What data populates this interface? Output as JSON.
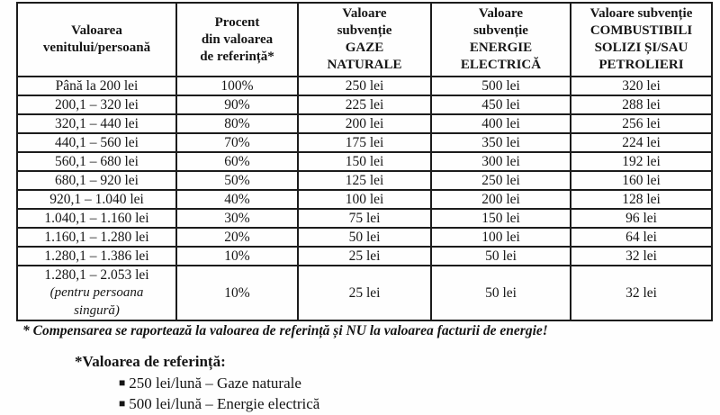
{
  "table": {
    "headers": [
      "Valoarea\nvenitului/persoană",
      "Procent\ndin valoarea\nde referință*",
      "Valoare\nsubvenție\nGAZE\nNATURALE",
      "Valoare\nsubvenție\nENERGIE\nELECTRICĂ",
      "Valoare subvenție\nCOMBUSTIBILI\nSOLIZI ȘI/SAU\nPETROLIERI"
    ],
    "rows": [
      [
        "Până la 200 lei",
        "100%",
        "250 lei",
        "500 lei",
        "320 lei"
      ],
      [
        "200,1 – 320 lei",
        "90%",
        "225 lei",
        "450 lei",
        "288 lei"
      ],
      [
        "320,1 – 440 lei",
        "80%",
        "200 lei",
        "400 lei",
        "256 lei"
      ],
      [
        "440,1 – 560 lei",
        "70%",
        "175 lei",
        "350 lei",
        "224 lei"
      ],
      [
        "560,1 – 680 lei",
        "60%",
        "150 lei",
        "300 lei",
        "192 lei"
      ],
      [
        "680,1 – 920 lei",
        "50%",
        "125 lei",
        "250 lei",
        "160 lei"
      ],
      [
        "920,1 – 1.040 lei",
        "40%",
        "100 lei",
        "200 lei",
        "128 lei"
      ],
      [
        "1.040,1 – 1.160 lei",
        "30%",
        "75 lei",
        "150 lei",
        "96 lei"
      ],
      [
        "1.160,1 – 1.280 lei",
        "20%",
        "50 lei",
        "100 lei",
        "64 lei"
      ],
      [
        "1.280,1 – 1.386 lei",
        "10%",
        "25 lei",
        "50 lei",
        "32 lei"
      ],
      [
        {
          "lines": [
            {
              "text": "1.280,1 – 2.053 lei"
            },
            {
              "text": "(pentru persoana",
              "italic": true
            },
            {
              "text": "singură)",
              "italic": true
            }
          ]
        },
        "10%",
        "25 lei",
        "50 lei",
        "32 lei"
      ]
    ]
  },
  "footnote": "* Compensarea se raportează la valoarea de referință și NU la valoarea facturii de energie!",
  "reference": {
    "heading": "*Valoarea de referință:",
    "bullet": "■",
    "items": [
      "250 lei/lună – Gaze naturale",
      "500 lei/lună – Energie electrică"
    ]
  }
}
